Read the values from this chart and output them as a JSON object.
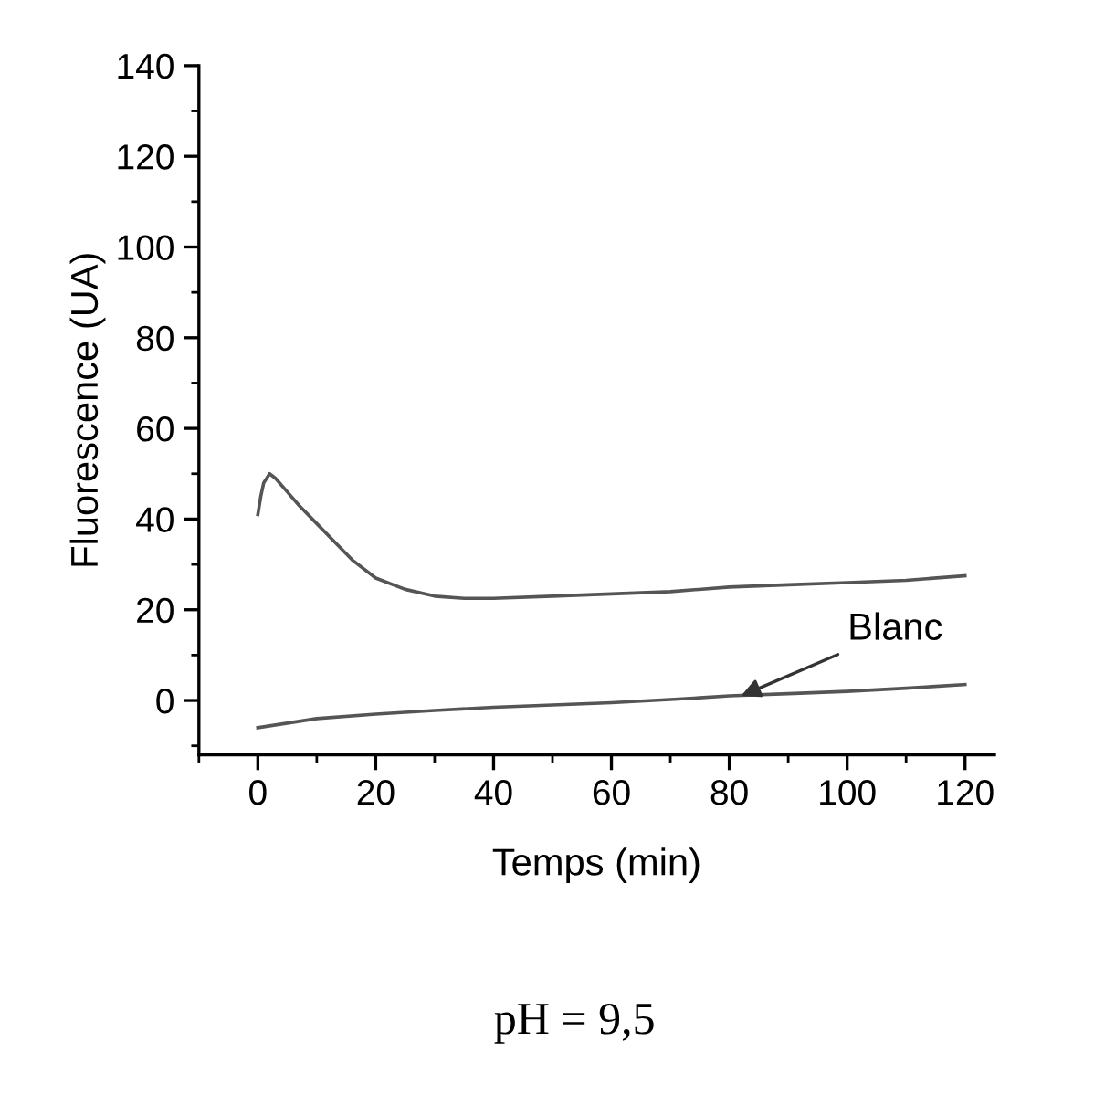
{
  "chart_data": {
    "type": "line",
    "xlabel": "Temps (min)",
    "ylabel": "Fluorescence (UA)",
    "xlim": [
      -10,
      125
    ],
    "ylim": [
      -12,
      140
    ],
    "xticks": [
      0,
      20,
      40,
      60,
      80,
      100,
      120
    ],
    "yticks": [
      0,
      20,
      40,
      60,
      80,
      100,
      120,
      140
    ],
    "grid": false,
    "legend": false,
    "marker": "none",
    "line_style": "solid",
    "series": [
      {
        "color": "#555555",
        "x": [
          0,
          0.5,
          1,
          2,
          3,
          5,
          7,
          10,
          13,
          16,
          20,
          25,
          30,
          35,
          40,
          50,
          60,
          70,
          80,
          90,
          100,
          110,
          120
        ],
        "values": [
          41,
          45,
          48,
          50,
          49,
          46,
          43,
          39,
          35,
          31,
          27,
          24.5,
          23,
          22.5,
          22.5,
          23,
          23.5,
          24,
          25,
          25.5,
          26,
          26.5,
          27.5
        ]
      },
      {
        "color": "#555555",
        "x": [
          0,
          5,
          10,
          20,
          30,
          40,
          50,
          60,
          70,
          80,
          90,
          100,
          110,
          120
        ],
        "values": [
          -6,
          -5,
          -4,
          -3,
          -2.2,
          -1.5,
          -1,
          -0.5,
          0.2,
          1,
          1.5,
          2,
          2.7,
          3.5
        ]
      }
    ],
    "annotations": [
      {
        "text": "Blanc",
        "x": 82,
        "y": 1
      },
      "pH = 9,5"
    ]
  }
}
